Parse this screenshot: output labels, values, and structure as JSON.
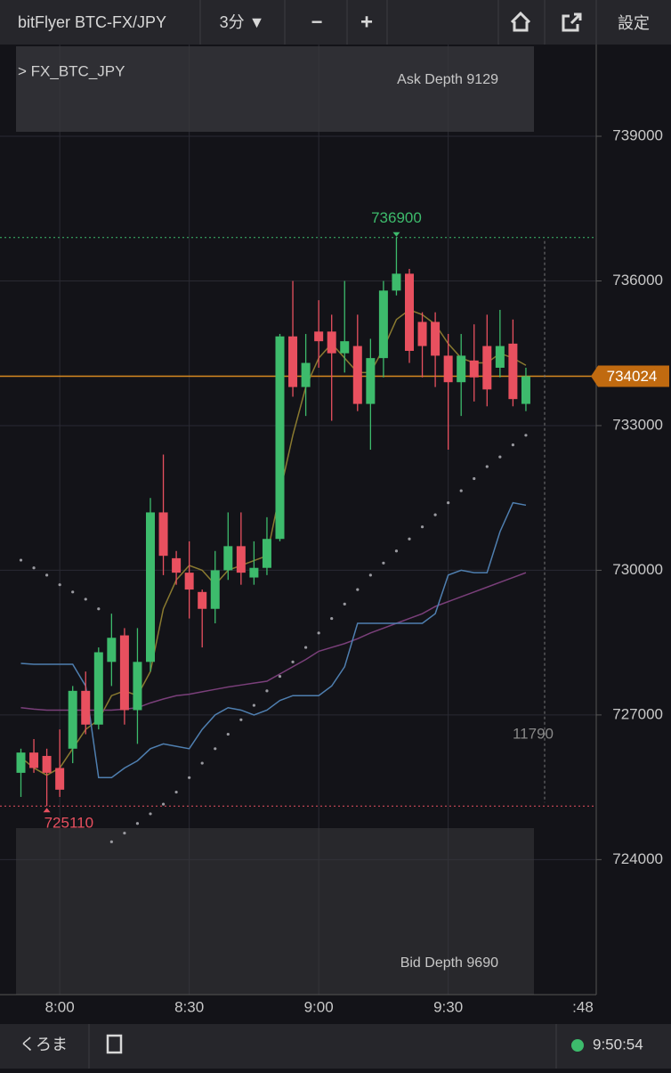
{
  "header": {
    "title": "bitFlyer BTC-FX/JPY",
    "interval": "3分 ▼",
    "zoom_out": "−",
    "zoom_in": "+",
    "settings": "設定"
  },
  "footer": {
    "user": "くろま",
    "clock": "9:50:54"
  },
  "chart_data": {
    "type": "candlestick",
    "symbol": "> FX_BTC_JPY",
    "ask_depth": "Ask Depth 9129",
    "bid_depth": "Bid Depth 9690",
    "categories": [
      null,
      null,
      null,
      "8:00",
      null,
      null,
      null,
      null,
      null,
      null,
      null,
      null,
      null,
      "8:30",
      null,
      null,
      null,
      null,
      null,
      null,
      null,
      null,
      null,
      "9:00",
      null,
      null,
      null,
      null,
      null,
      null,
      null,
      null,
      null,
      "9:30",
      null,
      null,
      null,
      null,
      null,
      null
    ],
    "x_now_label": ":48",
    "open": [
      725800,
      726220,
      726150,
      725900,
      726300,
      727500,
      726800,
      728100,
      728650,
      727100,
      728100,
      731200,
      730250,
      729950,
      729550,
      729200,
      730000,
      730500,
      729850,
      730050,
      730650,
      734850,
      733800,
      734950,
      734950,
      734500,
      734650,
      733450,
      734400,
      735800,
      736150,
      735150,
      735150,
      734450,
      733900,
      734350,
      734650,
      734200,
      734700,
      733450
    ],
    "high": [
      726300,
      726500,
      726300,
      726700,
      727600,
      727900,
      728400,
      729100,
      728800,
      728800,
      731500,
      732400,
      730400,
      730600,
      729600,
      730400,
      731200,
      731200,
      730600,
      731100,
      734900,
      736000,
      734900,
      735600,
      735300,
      736000,
      735300,
      734800,
      736000,
      736900,
      736250,
      735350,
      735350,
      734900,
      734900,
      735100,
      735300,
      735400,
      735200,
      734200
    ],
    "low": [
      725300,
      725800,
      725110,
      725300,
      726000,
      726600,
      726700,
      727600,
      726800,
      726400,
      727900,
      729900,
      729700,
      729000,
      728400,
      728900,
      729800,
      729700,
      729700,
      729900,
      730600,
      733600,
      733200,
      734200,
      733100,
      734100,
      733300,
      732500,
      734000,
      735700,
      734300,
      734000,
      733800,
      732500,
      733200,
      733500,
      733400,
      734000,
      733400,
      733300
    ],
    "close": [
      726220,
      725900,
      725800,
      725450,
      727500,
      726800,
      728300,
      728600,
      727100,
      728100,
      731200,
      730300,
      729950,
      729600,
      729200,
      730000,
      730500,
      729950,
      730050,
      730650,
      734850,
      733800,
      734300,
      734750,
      734500,
      734750,
      733450,
      734400,
      735800,
      736150,
      734550,
      734650,
      734450,
      733900,
      734450,
      734000,
      733750,
      734650,
      733550,
      734024
    ],
    "up_color": "#3dbb6c",
    "down_color": "#e8505f",
    "overlays": [
      {
        "color": "#8a7a30",
        "values": [
          726120,
          725900,
          725750,
          725900,
          726300,
          726700,
          726900,
          727400,
          727500,
          727400,
          727900,
          729200,
          729800,
          730100,
          730000,
          729700,
          730000,
          730100,
          730200,
          730300,
          731600,
          732800,
          733800,
          734400,
          734700,
          734400,
          734100,
          734100,
          734600,
          735200,
          735400,
          735300,
          735100,
          734700,
          734400,
          734300,
          734300,
          734500,
          734400,
          734250
        ]
      },
      {
        "color": "#7a3f7a",
        "values": [
          727150,
          727120,
          727100,
          727100,
          727100,
          727100,
          727100,
          727100,
          727120,
          727150,
          727250,
          727330,
          727400,
          727430,
          727480,
          727530,
          727580,
          727620,
          727660,
          727700,
          727850,
          728000,
          728150,
          728320,
          728400,
          728480,
          728580,
          728700,
          728800,
          728900,
          729000,
          729100,
          729250,
          729350,
          729450,
          729550,
          729650,
          729750,
          729850,
          729950
        ]
      },
      {
        "color": "#4f7fb0",
        "values": [
          728070,
          728050,
          728050,
          728050,
          728050,
          727600,
          725700,
          725700,
          725900,
          726050,
          726300,
          726400,
          726350,
          726300,
          726700,
          727000,
          727150,
          727100,
          727000,
          727100,
          727300,
          727400,
          727400,
          727400,
          727600,
          728000,
          728900,
          728900,
          728900,
          728900,
          728900,
          728900,
          729100,
          729900,
          730000,
          729950,
          729950,
          730800,
          731400,
          731350
        ]
      }
    ],
    "sar": {
      "color": "#9a9aa0",
      "values": [
        730210,
        730050,
        729900,
        729700,
        729550,
        729400,
        729200,
        724370,
        724550,
        724750,
        724950,
        725150,
        725400,
        725700,
        726000,
        726300,
        726600,
        726900,
        727200,
        727500,
        727800,
        728100,
        728400,
        728700,
        729000,
        729300,
        729600,
        729900,
        730150,
        730400,
        730650,
        730900,
        731150,
        731400,
        731650,
        731900,
        732150,
        732350,
        732600,
        732800
      ]
    },
    "high_mark": 736900,
    "low_mark": 725110,
    "last_price": 734024,
    "range": 11790,
    "ylim": [
      721200,
      741050
    ],
    "yticks": [
      724000,
      727000,
      730000,
      733000,
      736000,
      739000
    ],
    "grid": true
  }
}
